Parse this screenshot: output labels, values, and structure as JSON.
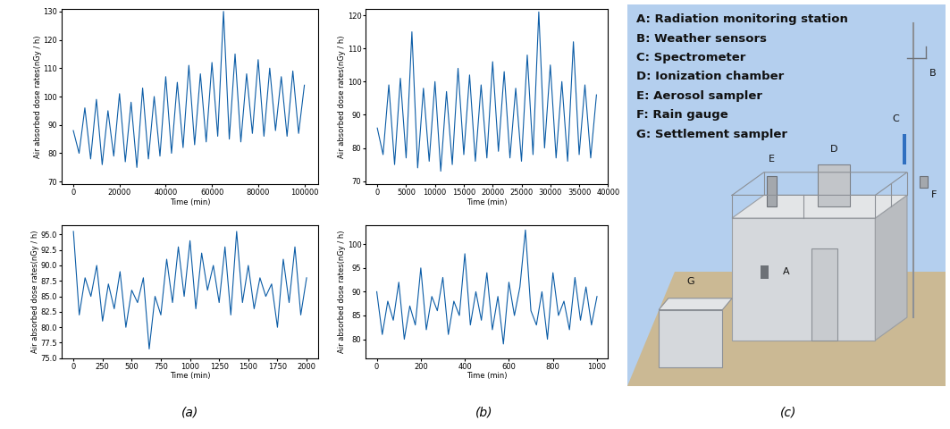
{
  "chart_data": [
    {
      "type": "line",
      "xlabel": "Time (min)",
      "ylabel": "Air absorbed dose rates(nGy / h)",
      "color": "#0b5ca6",
      "x": [
        0,
        2500,
        5000,
        7500,
        10000,
        12500,
        15000,
        17500,
        20000,
        22500,
        25000,
        27500,
        30000,
        32500,
        35000,
        37500,
        40000,
        42500,
        45000,
        47500,
        50000,
        52500,
        55000,
        57500,
        60000,
        62500,
        65000,
        67500,
        70000,
        72500,
        75000,
        77500,
        80000,
        82500,
        85000,
        87500,
        90000,
        92500,
        95000,
        97500,
        100000
      ],
      "values": [
        88,
        80,
        96,
        78,
        99,
        76,
        95,
        79,
        101,
        77,
        98,
        75,
        103,
        78,
        100,
        79,
        107,
        80,
        105,
        82,
        111,
        83,
        108,
        84,
        112,
        86,
        130,
        85,
        115,
        84,
        108,
        87,
        113,
        86,
        110,
        88,
        107,
        86,
        109,
        87,
        104
      ],
      "xlim": [
        -5000,
        106000
      ],
      "xticks": [
        0,
        20000,
        40000,
        60000,
        80000,
        100000
      ],
      "ylim": [
        69,
        131
      ],
      "yticks": [
        70,
        80,
        90,
        100,
        110,
        120,
        130
      ]
    },
    {
      "type": "line",
      "xlabel": "Time (min)",
      "ylabel": "Air absorbed dose rates(nGy / h)",
      "color": "#0b5ca6",
      "x": [
        0,
        1000,
        2000,
        3000,
        4000,
        5000,
        6000,
        7000,
        8000,
        9000,
        10000,
        11000,
        12000,
        13000,
        14000,
        15000,
        16000,
        17000,
        18000,
        19000,
        20000,
        21000,
        22000,
        23000,
        24000,
        25000,
        26000,
        27000,
        28000,
        29000,
        30000,
        31000,
        32000,
        33000,
        34000,
        35000,
        36000,
        37000,
        38000
      ],
      "values": [
        86,
        78,
        99,
        75,
        101,
        77,
        115,
        74,
        98,
        76,
        100,
        73,
        97,
        75,
        104,
        78,
        102,
        76,
        99,
        77,
        106,
        79,
        103,
        77,
        98,
        76,
        108,
        78,
        121,
        80,
        105,
        77,
        100,
        76,
        112,
        78,
        99,
        77,
        96
      ],
      "xlim": [
        -2000,
        40000
      ],
      "xticks": [
        0,
        5000,
        10000,
        15000,
        20000,
        25000,
        30000,
        35000,
        40000
      ],
      "ylim": [
        69,
        122
      ],
      "yticks": [
        70,
        80,
        90,
        100,
        110,
        120
      ]
    },
    {
      "type": "line",
      "xlabel": "Time (min)",
      "ylabel": "Air absorbed dose rates(nGy / h)",
      "color": "#0b5ca6",
      "x": [
        0,
        50,
        100,
        150,
        200,
        250,
        300,
        350,
        400,
        450,
        500,
        550,
        600,
        650,
        700,
        750,
        800,
        850,
        900,
        950,
        1000,
        1050,
        1100,
        1150,
        1200,
        1250,
        1300,
        1350,
        1400,
        1450,
        1500,
        1550,
        1600,
        1650,
        1700,
        1750,
        1800,
        1850,
        1900,
        1950,
        2000
      ],
      "values": [
        95.5,
        82,
        88,
        85,
        90,
        81,
        87,
        83,
        89,
        80,
        86,
        84,
        88,
        76.5,
        85,
        82,
        91,
        84,
        93,
        85,
        94,
        83,
        92,
        86,
        90,
        84,
        93,
        82,
        95.5,
        84,
        90,
        83,
        88,
        85,
        87,
        80,
        91,
        84,
        93,
        82,
        88
      ],
      "xlim": [
        -100,
        2100
      ],
      "xticks": [
        0,
        250,
        500,
        750,
        1000,
        1250,
        1500,
        1750,
        2000
      ],
      "ylim": [
        75,
        96.5
      ],
      "yticks": [
        {
          "value": 75,
          "label": "75.0"
        },
        77.5,
        {
          "value": 80,
          "label": "80.0"
        },
        82.5,
        {
          "value": 85,
          "label": "85.0"
        },
        87.5,
        {
          "value": 90,
          "label": "90.0"
        },
        92.5,
        {
          "value": 95,
          "label": "95.0"
        }
      ]
    },
    {
      "type": "line",
      "xlabel": "Time (min)",
      "ylabel": "Air absorbed dose rates(nGy / h)",
      "color": "#0b5ca6",
      "x": [
        0,
        25,
        50,
        75,
        100,
        125,
        150,
        175,
        200,
        225,
        250,
        275,
        300,
        325,
        350,
        375,
        400,
        425,
        450,
        475,
        500,
        525,
        550,
        575,
        600,
        625,
        650,
        675,
        700,
        725,
        750,
        775,
        800,
        825,
        850,
        875,
        900,
        925,
        950,
        975,
        1000
      ],
      "values": [
        90,
        81,
        88,
        84,
        92,
        80,
        87,
        83,
        95,
        82,
        89,
        86,
        93,
        81,
        88,
        85,
        98,
        83,
        90,
        84,
        94,
        82,
        89,
        79,
        92,
        85,
        91,
        103,
        86,
        83,
        90,
        80,
        94,
        85,
        88,
        82,
        93,
        84,
        91,
        83,
        89
      ],
      "xlim": [
        -50,
        1050
      ],
      "xticks": [
        0,
        200,
        400,
        600,
        800,
        1000
      ],
      "ylim": [
        76,
        104
      ],
      "yticks": [
        80,
        85,
        90,
        95,
        100
      ]
    }
  ],
  "panel_labels": [
    "(a)",
    "(b)",
    "(c)"
  ],
  "diagram": {
    "items": [
      {
        "label": "A: Radiation monitoring station",
        "marker": "A"
      },
      {
        "label": "B: Weather sensors",
        "marker": "B"
      },
      {
        "label": "C: Spectrometer",
        "marker": "C"
      },
      {
        "label": "D: Ionization chamber",
        "marker": "D"
      },
      {
        "label": "E: Aerosol sampler",
        "marker": "E"
      },
      {
        "label": "F: Rain gauge",
        "marker": "F"
      },
      {
        "label": "G: Settlement sampler",
        "marker": "G"
      }
    ]
  }
}
